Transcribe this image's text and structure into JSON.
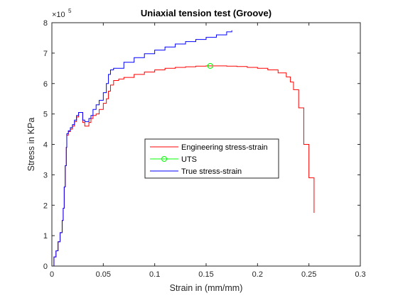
{
  "chart_data": {
    "type": "line",
    "title": "Uniaxial tension test (Groove)",
    "xlabel": "Strain in (mm/mm)",
    "ylabel": "Stress in KPa",
    "y_exponent": {
      "base": "×10",
      "power": "5"
    },
    "xlim": [
      0,
      0.3
    ],
    "ylim": [
      0,
      8
    ],
    "y_unit_scale": 100000,
    "xticks": [
      0,
      0.05,
      0.1,
      0.15,
      0.2,
      0.25,
      0.3
    ],
    "xtick_labels": [
      "0",
      "0.05",
      "0.1",
      "0.15",
      "0.2",
      "0.25",
      "0.3"
    ],
    "yticks": [
      0,
      1,
      2,
      3,
      4,
      5,
      6,
      7,
      8
    ],
    "ytick_labels": [
      "0",
      "1",
      "2",
      "3",
      "4",
      "5",
      "6",
      "7",
      "8"
    ],
    "grid": false,
    "legend_position": "center",
    "series": [
      {
        "name": "Engineering stress-strain",
        "color": "#ff0000",
        "marker": "none",
        "points": [
          [
            0.0,
            0.0
          ],
          [
            0.002,
            0.3
          ],
          [
            0.004,
            0.5
          ],
          [
            0.006,
            0.8
          ],
          [
            0.008,
            1.1
          ],
          [
            0.01,
            1.5
          ],
          [
            0.011,
            1.9
          ],
          [
            0.012,
            2.6
          ],
          [
            0.013,
            3.3
          ],
          [
            0.014,
            3.9
          ],
          [
            0.0145,
            4.3
          ],
          [
            0.016,
            4.42
          ],
          [
            0.018,
            4.5
          ],
          [
            0.02,
            4.6
          ],
          [
            0.022,
            4.75
          ],
          [
            0.024,
            4.9
          ],
          [
            0.026,
            5.05
          ],
          [
            0.028,
            5.05
          ],
          [
            0.03,
            4.72
          ],
          [
            0.032,
            4.6
          ],
          [
            0.034,
            4.6
          ],
          [
            0.036,
            4.72
          ],
          [
            0.038,
            4.85
          ],
          [
            0.04,
            4.95
          ],
          [
            0.043,
            5.0
          ],
          [
            0.046,
            5.15
          ],
          [
            0.05,
            5.35
          ],
          [
            0.053,
            5.5
          ],
          [
            0.055,
            5.75
          ],
          [
            0.057,
            5.95
          ],
          [
            0.06,
            6.1
          ],
          [
            0.065,
            6.15
          ],
          [
            0.07,
            6.2
          ],
          [
            0.08,
            6.3
          ],
          [
            0.09,
            6.38
          ],
          [
            0.1,
            6.45
          ],
          [
            0.11,
            6.5
          ],
          [
            0.12,
            6.53
          ],
          [
            0.13,
            6.55
          ],
          [
            0.14,
            6.57
          ],
          [
            0.15,
            6.58
          ],
          [
            0.16,
            6.58
          ],
          [
            0.17,
            6.57
          ],
          [
            0.18,
            6.56
          ],
          [
            0.19,
            6.53
          ],
          [
            0.2,
            6.5
          ],
          [
            0.21,
            6.45
          ],
          [
            0.22,
            6.35
          ],
          [
            0.228,
            6.22
          ],
          [
            0.232,
            6.05
          ],
          [
            0.235,
            5.8
          ],
          [
            0.24,
            5.2
          ],
          [
            0.245,
            4.0
          ],
          [
            0.25,
            2.9
          ],
          [
            0.255,
            1.75
          ]
        ]
      },
      {
        "name": "UTS",
        "color": "#00ff00",
        "marker": "o",
        "points": [
          [
            0.154,
            6.58
          ]
        ]
      },
      {
        "name": "True stress-strain",
        "color": "#0000ff",
        "marker": "none",
        "points": [
          [
            0.0,
            0.0
          ],
          [
            0.002,
            0.3
          ],
          [
            0.004,
            0.5
          ],
          [
            0.006,
            0.8
          ],
          [
            0.008,
            1.1
          ],
          [
            0.01,
            1.5
          ],
          [
            0.011,
            1.9
          ],
          [
            0.012,
            2.6
          ],
          [
            0.013,
            3.3
          ],
          [
            0.014,
            3.9
          ],
          [
            0.0145,
            4.35
          ],
          [
            0.016,
            4.45
          ],
          [
            0.018,
            4.55
          ],
          [
            0.02,
            4.65
          ],
          [
            0.022,
            4.8
          ],
          [
            0.024,
            4.95
          ],
          [
            0.026,
            5.05
          ],
          [
            0.028,
            5.05
          ],
          [
            0.03,
            4.8
          ],
          [
            0.032,
            4.75
          ],
          [
            0.034,
            4.75
          ],
          [
            0.036,
            4.85
          ],
          [
            0.038,
            4.95
          ],
          [
            0.04,
            5.15
          ],
          [
            0.043,
            5.3
          ],
          [
            0.046,
            5.45
          ],
          [
            0.05,
            5.7
          ],
          [
            0.053,
            6.0
          ],
          [
            0.055,
            6.3
          ],
          [
            0.057,
            6.45
          ],
          [
            0.06,
            6.5
          ],
          [
            0.07,
            6.7
          ],
          [
            0.08,
            6.85
          ],
          [
            0.09,
            6.98
          ],
          [
            0.1,
            7.1
          ],
          [
            0.11,
            7.2
          ],
          [
            0.12,
            7.3
          ],
          [
            0.13,
            7.38
          ],
          [
            0.14,
            7.45
          ],
          [
            0.15,
            7.52
          ],
          [
            0.16,
            7.6
          ],
          [
            0.17,
            7.7
          ],
          [
            0.175,
            7.75
          ]
        ]
      }
    ]
  }
}
